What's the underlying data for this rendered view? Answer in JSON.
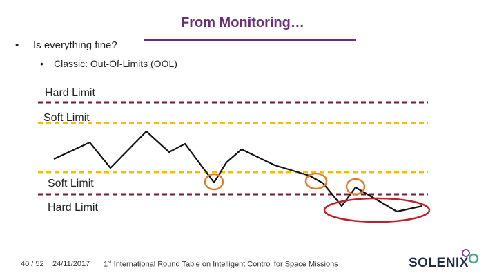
{
  "slide": {
    "title": "From Monitoring…",
    "bullets": [
      {
        "marker": "•",
        "text": "Is everything fine?"
      },
      {
        "marker": "•",
        "text": "Classic: Out-Of-Limits (OOL)"
      }
    ]
  },
  "limits": {
    "hard_upper": "Hard Limit",
    "soft_upper": "Soft Limit",
    "soft_lower": "Soft Limit",
    "hard_lower": "Hard Limit"
  },
  "colors": {
    "title": "#6b2f7a",
    "hard_limit": "#7a1a3a",
    "soft_limit": "#f0c000",
    "soft_violation": "#e07b2a",
    "hard_violation": "#c0202a",
    "signal": "#111111"
  },
  "footer": {
    "page": "40 / 52",
    "date": "24/11/2017",
    "event_prefix": "1",
    "event_sup": "st",
    "event_text": " International Round Table on Intelligent Control for Space Missions",
    "logo": "SOLENIX"
  }
}
